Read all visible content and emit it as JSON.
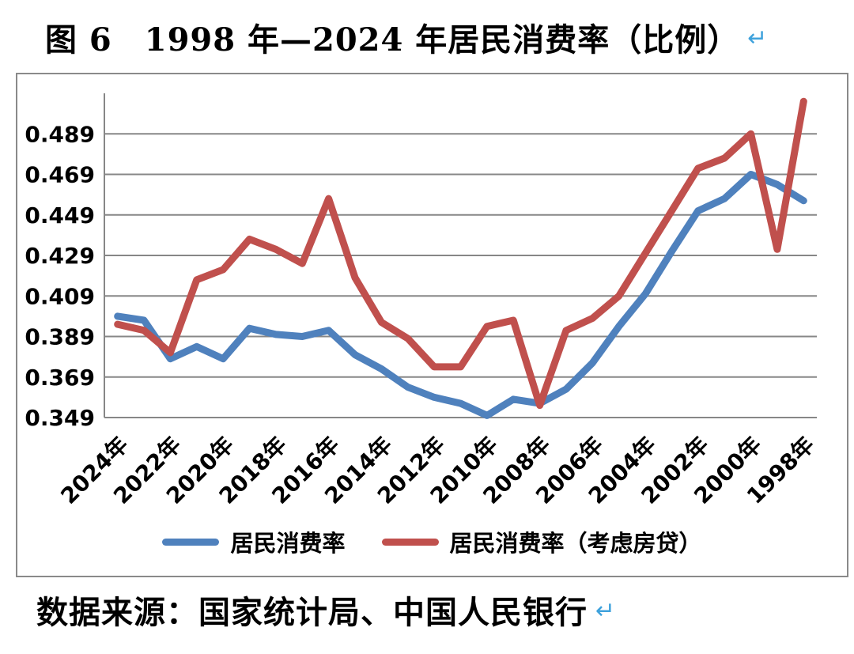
{
  "figure": {
    "title": "图 6　1998 年—2024 年居民消费率（比例）",
    "paragraph_mark": "↵",
    "source": "数据来源：国家统计局、中国人民银行"
  },
  "chart_data": {
    "type": "line",
    "title": "1998年—2024年居民消费率（比例）",
    "x": [
      2024,
      2023,
      2022,
      2021,
      2020,
      2019,
      2018,
      2017,
      2016,
      2015,
      2014,
      2013,
      2012,
      2011,
      2010,
      2009,
      2008,
      2007,
      2006,
      2005,
      2004,
      2003,
      2002,
      2001,
      2000,
      1999,
      1998
    ],
    "x_tick_labels": [
      "2024年",
      "2022年",
      "2020年",
      "2018年",
      "2016年",
      "2014年",
      "2012年",
      "2010年",
      "2008年",
      "2006年",
      "2004年",
      "2002年",
      "2000年",
      "1998年"
    ],
    "x_tick_every": 2,
    "x_axis_note": "years run right-to-left (2024 at left, 1998 at right)",
    "y_axis": {
      "min": 0.349,
      "max": 0.509,
      "tick_step": 0.02,
      "tick_labels": [
        "0.489",
        "0.469",
        "0.449",
        "0.429",
        "0.409",
        "0.389",
        "0.369",
        "0.349"
      ]
    },
    "grid": true,
    "legend_position": "bottom",
    "series": [
      {
        "name": "居民消费率",
        "color": "#4F81BD",
        "values": [
          0.399,
          0.397,
          0.378,
          0.384,
          0.378,
          0.393,
          0.39,
          0.389,
          0.392,
          0.38,
          0.373,
          0.364,
          0.359,
          0.356,
          0.35,
          0.358,
          0.356,
          0.363,
          0.376,
          0.394,
          0.41,
          0.431,
          0.451,
          0.457,
          0.469,
          0.464,
          0.456
        ]
      },
      {
        "name": "居民消费率（考虑房贷）",
        "color": "#C0504D",
        "values": [
          0.395,
          0.392,
          0.381,
          0.417,
          0.422,
          0.437,
          0.432,
          0.425,
          0.457,
          0.418,
          0.396,
          0.388,
          0.374,
          0.374,
          0.394,
          0.397,
          0.355,
          0.392,
          0.398,
          0.409,
          0.43,
          0.451,
          0.472,
          0.477,
          0.489,
          0.432,
          0.505
        ]
      }
    ]
  },
  "style": {
    "gridline_color": "#878787",
    "axis_color": "#878787",
    "frame_border_color": "#8a8a8a",
    "text_color": "#000000",
    "paragraph_mark_color": "#3FA2DC"
  }
}
